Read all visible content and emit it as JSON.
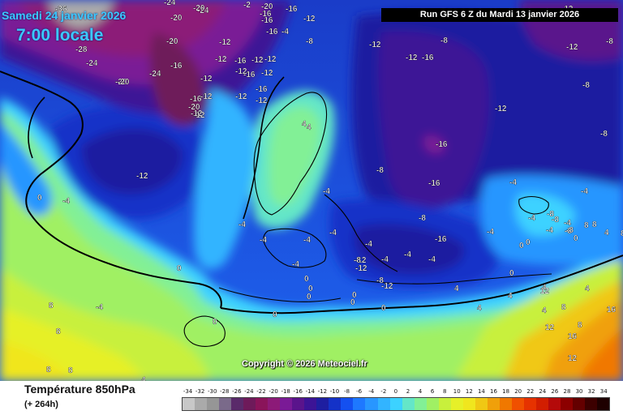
{
  "header": {
    "date": "Samedi 24 janvier 2026",
    "time": "7:00 locale",
    "run": "Run GFS 6 Z du Mardi 13 janvier 2026"
  },
  "copyright": "Copyright © 2026 Meteociel.fr",
  "footer": {
    "title": "Température 850hPa",
    "subtitle": "(+ 264h)"
  },
  "legend": {
    "ticks": [
      "-34",
      "-32",
      "-30",
      "-28",
      "-26",
      "-24",
      "-22",
      "-20",
      "-18",
      "-16",
      "-14",
      "-12",
      "-10",
      "-8",
      "-6",
      "-4",
      "-2",
      "0",
      "2",
      "4",
      "6",
      "8",
      "10",
      "12",
      "14",
      "16",
      "18",
      "20",
      "22",
      "24",
      "26",
      "28",
      "30",
      "32",
      "34"
    ],
    "colors": [
      "#c8c8c8",
      "#aaaaaa",
      "#969696",
      "#7a6a8a",
      "#5a2a6a",
      "#6e1a5a",
      "#8a145a",
      "#8c1a78",
      "#7a1a96",
      "#5a148c",
      "#3c1496",
      "#1e1ea0",
      "#1432c8",
      "#1450f0",
      "#1e78ff",
      "#2896ff",
      "#32b4ff",
      "#3cd2ff",
      "#64e6c8",
      "#82f096",
      "#a0f064",
      "#c8f03c",
      "#e6f028",
      "#f0e61e",
      "#f0c814",
      "#f0a00a",
      "#f07800",
      "#f05000",
      "#e63200",
      "#d21e00",
      "#b40a0a",
      "#8c0000",
      "#640000",
      "#3c0000",
      "#1e0000"
    ]
  },
  "map_labels": [
    "-36",
    "-24",
    "-20",
    "-24",
    "-20",
    "-16",
    "-20",
    "-2",
    "-20",
    "-16",
    "-12",
    "-4",
    "-8",
    "-16",
    "-12",
    "-12",
    "-16",
    "-12",
    "-12",
    "-16",
    "-12",
    "-20",
    "-12",
    "-28",
    "-24",
    "-20",
    "-24",
    "-16",
    "-12",
    "-12",
    "-16",
    "-12",
    "-16",
    "-12",
    "-12",
    "-12",
    "-12",
    "-12",
    "-12",
    "-20",
    "-16",
    "-12",
    "-8",
    "-16",
    "-12",
    "-8",
    "-8",
    "-8",
    "-12",
    "-8",
    "-16",
    "-4",
    "-4",
    "-8",
    "-16",
    "-16",
    "-8",
    "-8",
    "0",
    "-4",
    "4",
    "4",
    "0",
    "-4",
    "0",
    "-12",
    "-4",
    "-4",
    "-4",
    "-8",
    "-4",
    "0",
    "-8",
    "-12",
    "-12",
    "-8",
    "-8",
    "-4",
    "0",
    "-4",
    "-4",
    "0",
    "-4",
    "0",
    "0",
    "0",
    "0",
    "0",
    "0",
    "0",
    "0",
    "4",
    "4",
    "4",
    "4",
    "4",
    "4",
    "8",
    "8",
    "8",
    "8",
    "8",
    "8",
    "12",
    "12",
    "16",
    "16",
    "12",
    "8",
    "8",
    "8",
    "4",
    "-4",
    "-4",
    "-4",
    "-4",
    "-4",
    "4",
    "-4"
  ]
}
